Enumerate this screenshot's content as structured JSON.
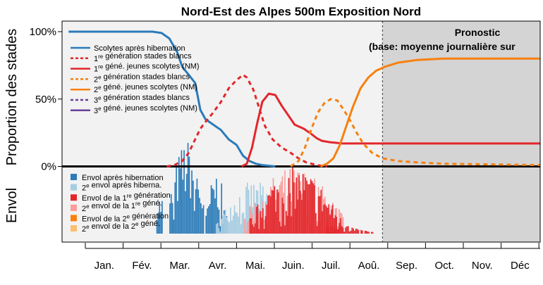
{
  "chart_data": {
    "type": "line",
    "title": "Nord-Est des Alpes 500m Exposition Nord",
    "ylabel_top": "Proportion des stades",
    "ylabel_bottom": "Envol",
    "yticks": [
      "100%",
      "50%",
      "0%"
    ],
    "months": [
      "Jan.",
      "Fév.",
      "Mar.",
      "Avr.",
      "Mai.",
      "Juin.",
      "Juil.",
      "Aoû.",
      "Sep.",
      "Oct.",
      "Nov.",
      "Déc"
    ],
    "forecast_label": "Pronostic",
    "forecast_sublabel": "(base: moyenne journalière sur",
    "forecast_start_day": 243,
    "x_range": [
      -5,
      365
    ],
    "y_range": [
      0,
      100
    ],
    "colors": {
      "panel_bg": "#f2f2f2",
      "forecast_bg": "#d4d4d4",
      "blue": "#2b7bb9",
      "light_blue": "#a6cde2",
      "red": "#e3262b",
      "pink": "#fa9c9a",
      "orange": "#f7800e",
      "light_orange": "#fdbe6f",
      "purple": "#6a3d9a"
    },
    "line_legend": [
      {
        "text": "Scolytes après hibernation",
        "color": "#2b7bb9",
        "dash": false
      },
      {
        "text": "1re génération stades blancs",
        "color": "#e3262b",
        "dash": true
      },
      {
        "text": "1re géné. jeunes scolytes (NM)",
        "color": "#e3262b",
        "dash": false
      },
      {
        "text": "2e génération stades blancs",
        "color": "#f7800e",
        "dash": true
      },
      {
        "text": "2e géné. jeunes scolytes (NM)",
        "color": "#f7800e",
        "dash": false
      },
      {
        "text": "3e génération stades blancs",
        "color": "#6a3d9a",
        "dash": true
      },
      {
        "text": "3e géné. jeunes scolytes (NM)",
        "color": "#6a3d9a",
        "dash": false
      }
    ],
    "bar_legend": [
      {
        "text": "Envol après hibernation",
        "color": "#2b7bb9"
      },
      {
        "text": "2e envol après hiberna.",
        "color": "#a6cde2"
      },
      {
        "text": "Envol de la 1re génération",
        "color": "#e3262b"
      },
      {
        "text": "2e envol de la 1re géné.",
        "color": "#fa9c9a"
      },
      {
        "text": "Envol de la 2e génération",
        "color": "#f7800e"
      },
      {
        "text": "2e envol de la 2e géné.",
        "color": "#fdbe6f"
      }
    ],
    "series": [
      {
        "name": "Scolytes après hibernation",
        "color": "#2b7bb9",
        "dash": false,
        "points": [
          [
            0,
            100
          ],
          [
            65,
            100
          ],
          [
            72,
            99
          ],
          [
            78,
            95
          ],
          [
            84,
            85
          ],
          [
            88,
            74
          ],
          [
            93,
            68
          ],
          [
            98,
            62
          ],
          [
            102,
            42
          ],
          [
            106,
            35
          ],
          [
            112,
            31
          ],
          [
            118,
            27
          ],
          [
            124,
            20
          ],
          [
            130,
            16
          ],
          [
            135,
            8
          ],
          [
            140,
            4
          ],
          [
            145,
            2
          ],
          [
            150,
            1
          ],
          [
            160,
            0
          ]
        ]
      },
      {
        "name": "1re génération stades blancs",
        "color": "#e3262b",
        "dash": true,
        "points": [
          [
            76,
            0
          ],
          [
            82,
            1
          ],
          [
            88,
            4
          ],
          [
            93,
            10
          ],
          [
            98,
            20
          ],
          [
            102,
            28
          ],
          [
            106,
            33
          ],
          [
            112,
            40
          ],
          [
            118,
            48
          ],
          [
            124,
            58
          ],
          [
            130,
            64
          ],
          [
            135,
            68
          ],
          [
            138,
            66
          ],
          [
            143,
            57
          ],
          [
            147,
            45
          ],
          [
            152,
            30
          ],
          [
            158,
            20
          ],
          [
            165,
            14
          ],
          [
            172,
            10
          ],
          [
            178,
            6
          ],
          [
            184,
            3
          ],
          [
            192,
            1
          ],
          [
            200,
            0
          ]
        ]
      },
      {
        "name": "1re géné. jeunes scolytes (NM)",
        "color": "#e3262b",
        "dash": false,
        "points": [
          [
            134,
            0
          ],
          [
            138,
            2
          ],
          [
            142,
            14
          ],
          [
            146,
            32
          ],
          [
            150,
            48
          ],
          [
            155,
            54
          ],
          [
            160,
            53
          ],
          [
            165,
            45
          ],
          [
            170,
            38
          ],
          [
            175,
            31
          ],
          [
            182,
            28
          ],
          [
            188,
            24
          ],
          [
            192,
            21
          ],
          [
            196,
            19
          ],
          [
            202,
            18
          ],
          [
            212,
            17
          ],
          [
            365,
            17
          ]
        ]
      },
      {
        "name": "2e génération stades blancs",
        "color": "#f7800e",
        "dash": true,
        "points": [
          [
            172,
            0
          ],
          [
            178,
            4
          ],
          [
            183,
            14
          ],
          [
            188,
            28
          ],
          [
            193,
            40
          ],
          [
            198,
            47
          ],
          [
            203,
            50
          ],
          [
            208,
            49
          ],
          [
            213,
            42
          ],
          [
            218,
            34
          ],
          [
            223,
            25
          ],
          [
            228,
            17
          ],
          [
            235,
            10
          ],
          [
            243,
            6
          ],
          [
            255,
            4
          ],
          [
            270,
            3
          ],
          [
            290,
            2
          ],
          [
            365,
            1
          ]
        ]
      },
      {
        "name": "2e géné. jeunes scolytes (NM)",
        "color": "#f7800e",
        "dash": false,
        "points": [
          [
            195,
            0
          ],
          [
            200,
            2
          ],
          [
            205,
            6
          ],
          [
            210,
            16
          ],
          [
            215,
            30
          ],
          [
            220,
            44
          ],
          [
            226,
            58
          ],
          [
            232,
            66
          ],
          [
            238,
            71
          ],
          [
            245,
            74
          ],
          [
            255,
            77
          ],
          [
            270,
            79
          ],
          [
            290,
            80
          ],
          [
            365,
            80
          ]
        ]
      }
    ]
  }
}
